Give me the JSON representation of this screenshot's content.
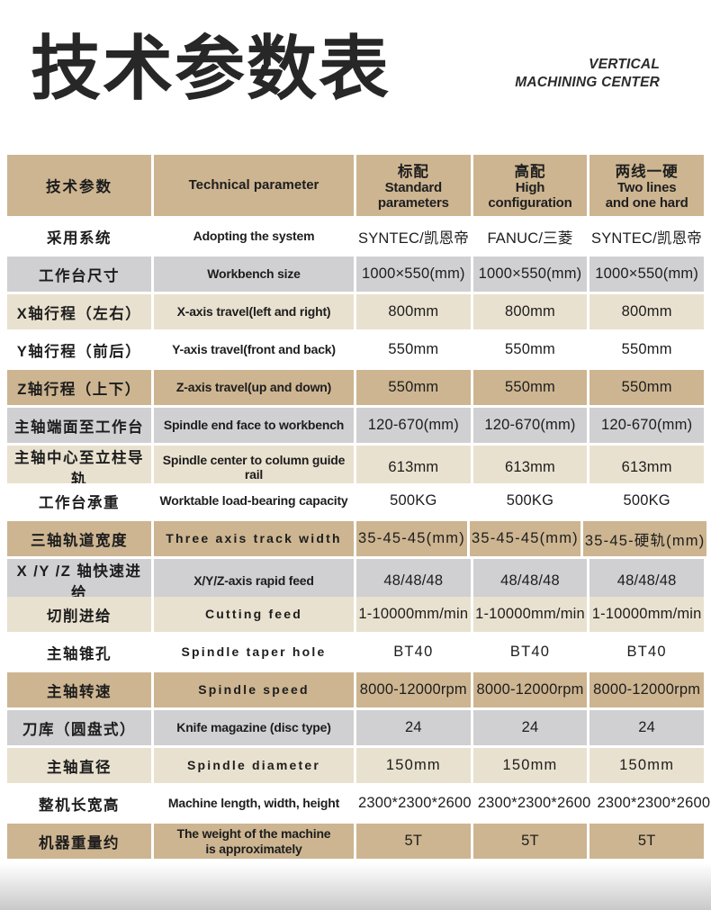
{
  "page": {
    "title": "技术参数表",
    "tagline": [
      "VERTICAL",
      "MACHINING CENTER"
    ]
  },
  "colors": {
    "tan": "#cdb591",
    "pale": "#e9e1cf",
    "gray": "#d0cfd1",
    "text": "#1d1d1d"
  },
  "table": {
    "header": {
      "param_zh": "技术参数",
      "param_en": "Technical parameter",
      "value_columns": [
        {
          "zh": "标配",
          "en": "Standard\nparameters"
        },
        {
          "zh": "高配",
          "en": "High\nconfiguration"
        },
        {
          "zh": "两线一硬",
          "en": "Two lines\nand one hard"
        }
      ]
    },
    "rows": [
      {
        "zh": "采用系统",
        "en": "Adopting the system",
        "values": [
          "SYNTEC/凯恩帝",
          "FANUC/三菱",
          "SYNTEC/凯恩帝"
        ]
      },
      {
        "zh": "工作台尺寸",
        "en": "Workbench size",
        "values": [
          "1000×550(mm)",
          "1000×550(mm)",
          "1000×550(mm)"
        ]
      },
      {
        "zh": "X轴行程（左右）",
        "en": "X-axis travel(left and right)",
        "values": [
          "800mm",
          "800mm",
          "800mm"
        ]
      },
      {
        "zh": "Y轴行程（前后）",
        "en": "Y-axis travel(front and back)",
        "values": [
          "550mm",
          "550mm",
          "550mm"
        ]
      },
      {
        "zh": "Z轴行程（上下）",
        "en": "Z-axis travel(up and down)",
        "values": [
          "550mm",
          "550mm",
          "550mm"
        ]
      },
      {
        "zh": "主轴端面至工作台",
        "en": "Spindle end face to workbench",
        "values": [
          "120-670(mm)",
          "120-670(mm)",
          "120-670(mm)"
        ]
      },
      {
        "zh": "主轴中心至立柱导轨",
        "en": "Spindle center to column guide rail",
        "values": [
          "613mm",
          "613mm",
          "613mm"
        ]
      },
      {
        "zh": "工作台承重",
        "en": "Worktable load-bearing capacity",
        "values": [
          "500KG",
          "500KG",
          "500KG"
        ]
      },
      {
        "zh": "三轴轨道宽度",
        "en": "Three axis track width",
        "values": [
          "35-45-45(mm)",
          "35-45-45(mm)",
          "35-45-硬轨(mm)"
        ]
      },
      {
        "zh": "X /Y /Z 轴快速进给",
        "en": "X/Y/Z-axis rapid feed",
        "values": [
          "48/48/48",
          "48/48/48",
          "48/48/48"
        ]
      },
      {
        "zh": "切削进给",
        "en": "Cutting feed",
        "values": [
          "1-10000mm/min",
          "1-10000mm/min",
          "1-10000mm/min"
        ]
      },
      {
        "zh": "主轴锥孔",
        "en": "Spindle taper hole",
        "values": [
          "BT40",
          "BT40",
          "BT40"
        ]
      },
      {
        "zh": "主轴转速",
        "en": "Spindle speed",
        "values": [
          "8000-12000rpm",
          "8000-12000rpm",
          "8000-12000rpm"
        ]
      },
      {
        "zh": "刀库（圆盘式）",
        "en": "Knife magazine (disc type)",
        "values": [
          "24",
          "24",
          "24"
        ]
      },
      {
        "zh": "主轴直径",
        "en": "Spindle diameter",
        "values": [
          "150mm",
          "150mm",
          "150mm"
        ]
      },
      {
        "zh": "整机长宽高",
        "en": "Machine length, width, height",
        "values": [
          "2300*2300*2600",
          "2300*2300*2600",
          "2300*2300*2600"
        ]
      },
      {
        "zh": "机器重量约",
        "en": "The weight of the machine\nis approximately",
        "values": [
          "5T",
          "5T",
          "5T"
        ]
      }
    ]
  }
}
